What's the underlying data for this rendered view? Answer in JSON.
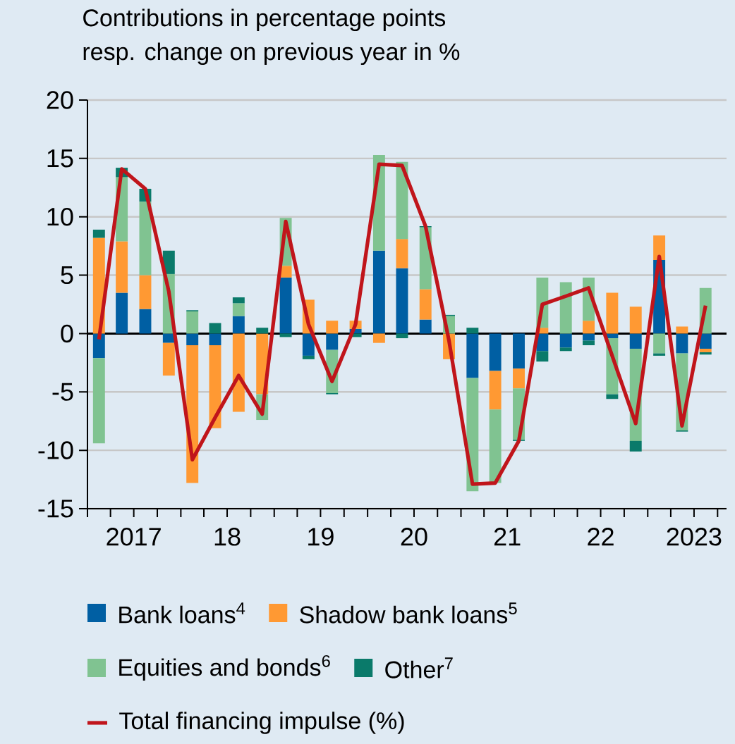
{
  "chart_data": {
    "type": "bar",
    "stacked": true,
    "title": "Contributions in percentage points resp. change on previous year in %",
    "x": [
      "2017-02-15",
      "2017-05-15",
      "2017-08-15",
      "2017-11-15",
      "2018-02-15",
      "2018-05-15",
      "2018-08-15",
      "2018-11-15",
      "2019-02-15",
      "2019-05-15",
      "2019-08-15",
      "2019-11-15",
      "2020-02-15",
      "2020-05-15",
      "2020-08-15",
      "2020-11-15",
      "2021-02-15",
      "2021-05-15",
      "2021-08-15",
      "2021-11-15",
      "2022-02-15",
      "2022-05-15",
      "2022-08-15",
      "2022-11-15",
      "2023-02-15",
      "2023-05-15",
      "2023-08-15"
    ],
    "xlim": [
      "2017-01-01",
      "2023-11-05"
    ],
    "xticks": [
      {
        "value": "2017-01-01",
        "label": null
      },
      {
        "value": "2017-04-01",
        "label": null
      },
      {
        "value": "2017-07-01",
        "label": "2017"
      },
      {
        "value": "2017-10-01",
        "label": null
      },
      {
        "value": "2018-01-01",
        "label": null
      },
      {
        "value": "2018-04-01",
        "label": null
      },
      {
        "value": "2018-07-01",
        "label": "18"
      },
      {
        "value": "2018-10-01",
        "label": null
      },
      {
        "value": "2019-01-01",
        "label": null
      },
      {
        "value": "2019-04-01",
        "label": null
      },
      {
        "value": "2019-07-01",
        "label": "19"
      },
      {
        "value": "2019-10-01",
        "label": null
      },
      {
        "value": "2020-01-01",
        "label": null
      },
      {
        "value": "2020-04-01",
        "label": null
      },
      {
        "value": "2020-07-01",
        "label": "20"
      },
      {
        "value": "2020-10-01",
        "label": null
      },
      {
        "value": "2021-01-01",
        "label": null
      },
      {
        "value": "2021-04-01",
        "label": null
      },
      {
        "value": "2021-07-01",
        "label": "21"
      },
      {
        "value": "2021-10-01",
        "label": null
      },
      {
        "value": "2022-01-01",
        "label": null
      },
      {
        "value": "2022-04-01",
        "label": null
      },
      {
        "value": "2022-07-01",
        "label": "22"
      },
      {
        "value": "2022-10-01",
        "label": null
      },
      {
        "value": "2023-01-01",
        "label": null
      },
      {
        "value": "2023-04-01",
        "label": null
      },
      {
        "value": "2023-07-01",
        "label": "2023"
      },
      {
        "value": "2023-10-01",
        "label": null
      }
    ],
    "ylim": [
      -15,
      20
    ],
    "yticks": [
      -15,
      -10,
      -5,
      0,
      5,
      10,
      15,
      20
    ],
    "grid": "y",
    "legend": "bottom",
    "ref_lines": [
      {
        "axis": "y",
        "value": 0,
        "color": "#000000"
      }
    ],
    "series": [
      {
        "name": "Bank loans$^{4}$",
        "color": "#005fa3",
        "values": [
          -2.1,
          3.5,
          2.1,
          -0.8,
          -1.0,
          -1.0,
          1.5,
          null,
          4.8,
          -1.9,
          -1.4,
          0.4,
          7.1,
          5.6,
          1.2,
          null,
          -3.8,
          -3.2,
          -3.0,
          -1.5,
          -1.2,
          -0.6,
          -0.4,
          -1.3,
          6.3,
          -1.7,
          -1.3
        ]
      },
      {
        "name": "Shadow bank loans$^{5}$",
        "color": "#ff9933",
        "values": [
          8.2,
          4.4,
          2.9,
          -2.8,
          -11.8,
          -7.1,
          -6.7,
          -5.2,
          1.0,
          2.9,
          1.1,
          0.7,
          -0.8,
          2.5,
          2.6,
          -2.2,
          null,
          -3.3,
          -1.7,
          0.5,
          null,
          1.1,
          3.5,
          2.3,
          2.1,
          0.6,
          -0.3
        ]
      },
      {
        "name": "Equities and bonds$^{6}$",
        "color": "#80c391",
        "values": [
          -7.3,
          5.5,
          6.3,
          5.1,
          1.9,
          null,
          1.1,
          -2.2,
          4.1,
          null,
          -3.7,
          null,
          8.2,
          6.6,
          5.3,
          1.5,
          -9.7,
          -6.3,
          -4.4,
          4.3,
          4.4,
          3.7,
          -4.8,
          -7.9,
          -1.7,
          -6.6,
          3.9
        ]
      },
      {
        "name": "Other$^{7}$",
        "color": "#0a7a6a",
        "values": [
          0.7,
          0.8,
          1.1,
          2.0,
          0.1,
          0.9,
          0.5,
          0.5,
          -0.3,
          -0.3,
          -0.1,
          -0.3,
          null,
          -0.4,
          0.1,
          0.1,
          0.5,
          null,
          -0.1,
          -0.9,
          -0.3,
          -0.4,
          -0.4,
          -0.9,
          -0.2,
          -0.1,
          -0.2
        ]
      },
      {
        "name": "Total financing impulse (%)",
        "type": "line",
        "color": "#c0151b",
        "values": [
          -0.5,
          14.1,
          12.4,
          3.6,
          -10.8,
          -7.2,
          -3.6,
          -6.9,
          9.6,
          0.8,
          -4.1,
          0.8,
          14.5,
          14.4,
          9.2,
          -0.6,
          -12.9,
          -12.8,
          -9.2,
          2.5,
          3.2,
          3.9,
          -1.9,
          -7.7,
          6.6,
          -7.9,
          2.4
        ]
      }
    ]
  }
}
